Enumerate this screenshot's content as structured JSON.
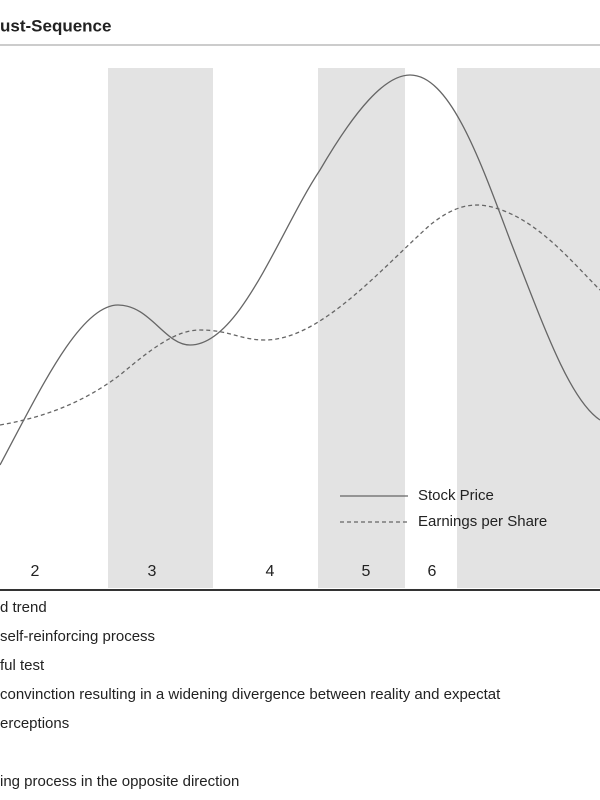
{
  "header": {
    "title": "ust-Sequence"
  },
  "stages": [
    "2",
    "3",
    "4",
    "5",
    "6"
  ],
  "legend": [
    "Stock Price",
    "Earnings per Share"
  ],
  "notes": [
    "d trend",
    "self-reinforcing process",
    "ful test",
    "convinction resulting in a widening divergence between reality and expectat",
    "erceptions",
    "ing process in the opposite direction"
  ]
}
